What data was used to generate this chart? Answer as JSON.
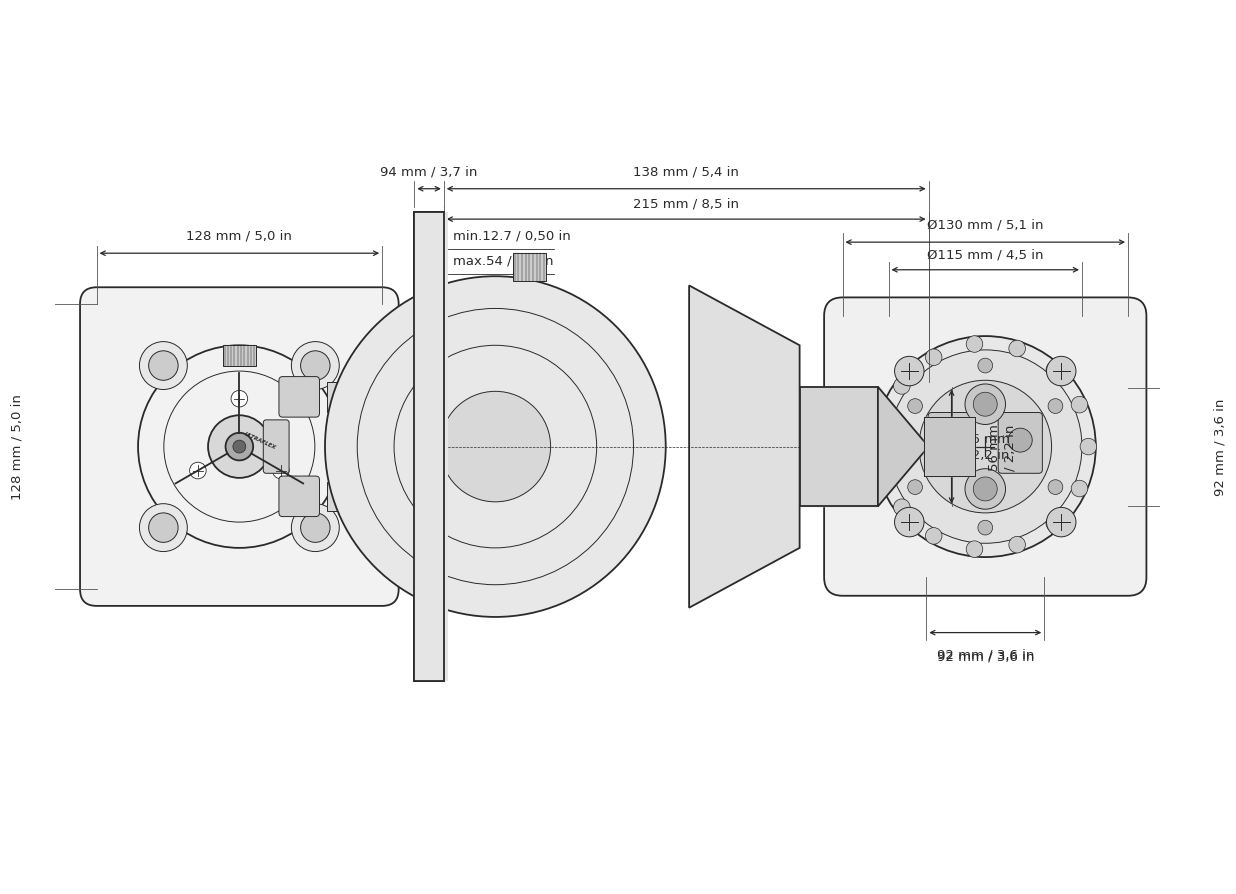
{
  "bg_color": "#ffffff",
  "line_color": "#2a2a2a",
  "lw_main": 1.3,
  "lw_thin": 0.7,
  "lw_dim": 0.9,
  "dim_fontsize": 9.5,
  "dims": {
    "left_width": "128 mm / 5,0 in",
    "left_height": "128 mm / 5,0 in",
    "mid_depth1": "94 mm / 3,7 in",
    "mid_depth2": "138 mm / 5,4 in",
    "mid_depth3": "215 mm / 8,5 in",
    "mid_shaft_min": "min.12.7 / 0,50 in",
    "mid_shaft_max": "max.54 / 2,1 in",
    "mid_shaft_d": "56 mm\n/ 2,2 in",
    "right_od1": "Ø130 mm / 5,1 in",
    "right_od2": "Ø115 mm / 4,5 in",
    "right_width": "92 mm / 3,6 in",
    "right_height": "92 mm / 3,6 in"
  }
}
